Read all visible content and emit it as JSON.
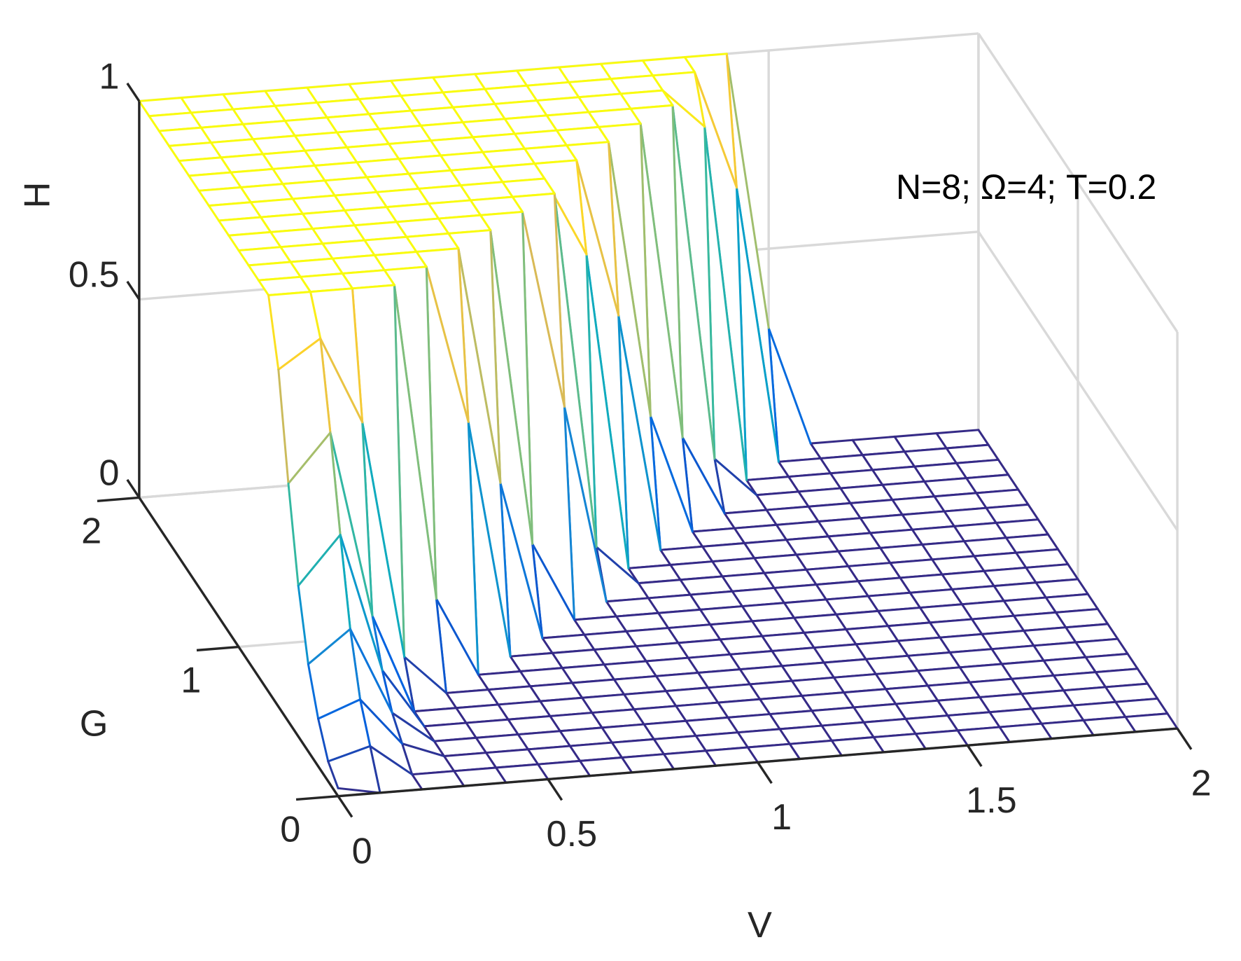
{
  "chart_data": {
    "type": "mesh3d",
    "xlabel": "V",
    "ylabel": "G",
    "zlabel": "H",
    "annotation": "N=8; Ω=4; T=0.2",
    "colormap": "parula",
    "grid": true,
    "xlim": [
      0,
      2
    ],
    "xticks": [
      0,
      0.5,
      1,
      1.5,
      2
    ],
    "ylim": [
      0,
      2
    ],
    "yticks": [
      0,
      1,
      2
    ],
    "zlim": [
      0,
      1
    ],
    "zticks": [
      0,
      0.5,
      1
    ],
    "x": [
      0,
      0.1,
      0.2,
      0.3,
      0.4,
      0.5,
      0.6,
      0.7,
      0.8,
      0.9,
      1,
      1.1,
      1.2,
      1.3,
      1.4,
      1.5,
      1.6,
      1.7,
      1.8,
      1.9,
      2
    ],
    "y": [
      0,
      0.1,
      0.2,
      0.3,
      0.4,
      0.5,
      0.6,
      0.7,
      0.8,
      0.9,
      1,
      1.1,
      1.2,
      1.3,
      1.4,
      1.5,
      1.6,
      1.7,
      1.8,
      1.9,
      2
    ],
    "z": [
      [
        0.02,
        0,
        0,
        0,
        0,
        0,
        0,
        0,
        0,
        0,
        0,
        0,
        0,
        0,
        0,
        0,
        0,
        0,
        0,
        0,
        0
      ],
      [
        0.05,
        0.08,
        0,
        0,
        0,
        0,
        0,
        0,
        0,
        0,
        0,
        0,
        0,
        0,
        0,
        0,
        0,
        0,
        0,
        0,
        0
      ],
      [
        0.12,
        0.16,
        0.04,
        0,
        0,
        0,
        0,
        0,
        0,
        0,
        0,
        0,
        0,
        0,
        0,
        0,
        0,
        0,
        0,
        0,
        0
      ],
      [
        0.22,
        0.3,
        0.08,
        0,
        0,
        0,
        0,
        0,
        0,
        0,
        0,
        0,
        0,
        0,
        0,
        0,
        0,
        0,
        0,
        0,
        0
      ],
      [
        0.38,
        0.5,
        0.15,
        0,
        0,
        0,
        0,
        0,
        0,
        0,
        0,
        0,
        0,
        0,
        0,
        0,
        0,
        0,
        0,
        0,
        0
      ],
      [
        0.6,
        0.72,
        0.25,
        0,
        0,
        0,
        0,
        0,
        0,
        0,
        0,
        0,
        0,
        0,
        0,
        0,
        0,
        0,
        0,
        0,
        0
      ],
      [
        0.85,
        0.92,
        0.7,
        0.1,
        0,
        0,
        0,
        0,
        0,
        0,
        0,
        0,
        0,
        0,
        0,
        0,
        0,
        0,
        0,
        0,
        0
      ],
      [
        1,
        1,
        1,
        1,
        0.2,
        0,
        0,
        0,
        0,
        0,
        0,
        0,
        0,
        0,
        0,
        0,
        0,
        0,
        0,
        0,
        0
      ],
      [
        1,
        1,
        1,
        1,
        1,
        0.6,
        0,
        0,
        0,
        0,
        0,
        0,
        0,
        0,
        0,
        0,
        0,
        0,
        0,
        0,
        0
      ],
      [
        1,
        1,
        1,
        1,
        1,
        1,
        0.4,
        0,
        0,
        0,
        0,
        0,
        0,
        0,
        0,
        0,
        0,
        0,
        0,
        0,
        0
      ],
      [
        1,
        1,
        1,
        1,
        1,
        1,
        1,
        0.2,
        0,
        0,
        0,
        0,
        0,
        0,
        0,
        0,
        0,
        0,
        0,
        0,
        0
      ],
      [
        1,
        1,
        1,
        1,
        1,
        1,
        1,
        1,
        0.5,
        0,
        0,
        0,
        0,
        0,
        0,
        0,
        0,
        0,
        0,
        0,
        0
      ],
      [
        1,
        1,
        1,
        1,
        1,
        1,
        1,
        1,
        1,
        0.1,
        0,
        0,
        0,
        0,
        0,
        0,
        0,
        0,
        0,
        0,
        0
      ],
      [
        1,
        1,
        1,
        1,
        1,
        1,
        1,
        1,
        1,
        0.8,
        0,
        0,
        0,
        0,
        0,
        0,
        0,
        0,
        0,
        0,
        0
      ],
      [
        1,
        1,
        1,
        1,
        1,
        1,
        1,
        1,
        1,
        1,
        0.6,
        0,
        0,
        0,
        0,
        0,
        0,
        0,
        0,
        0,
        0
      ],
      [
        1,
        1,
        1,
        1,
        1,
        1,
        1,
        1,
        1,
        1,
        1,
        0.3,
        0,
        0,
        0,
        0,
        0,
        0,
        0,
        0,
        0
      ],
      [
        1,
        1,
        1,
        1,
        1,
        1,
        1,
        1,
        1,
        1,
        1,
        1,
        0.2,
        0,
        0,
        0,
        0,
        0,
        0,
        0,
        0
      ],
      [
        1,
        1,
        1,
        1,
        1,
        1,
        1,
        1,
        1,
        1,
        1,
        1,
        1,
        0.1,
        0,
        0,
        0,
        0,
        0,
        0,
        0
      ],
      [
        1,
        1,
        1,
        1,
        1,
        1,
        1,
        1,
        1,
        1,
        1,
        1,
        1,
        0.9,
        0,
        0,
        0,
        0,
        0,
        0,
        0
      ],
      [
        1,
        1,
        1,
        1,
        1,
        1,
        1,
        1,
        1,
        1,
        1,
        1,
        1,
        1,
        0.7,
        0,
        0,
        0,
        0,
        0,
        0
      ],
      [
        1,
        1,
        1,
        1,
        1,
        1,
        1,
        1,
        1,
        1,
        1,
        1,
        1,
        1,
        1,
        0.3,
        0,
        0,
        0,
        0,
        0
      ]
    ]
  }
}
